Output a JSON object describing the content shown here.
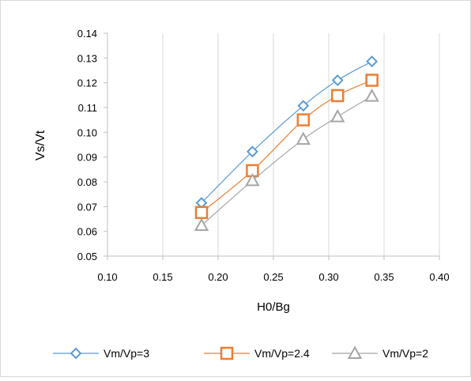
{
  "chart_data": {
    "type": "line",
    "xlabel": "H0/Bg",
    "ylabel": "Vs/Vt",
    "xlim": [
      0.1,
      0.4
    ],
    "ylim": [
      0.05,
      0.14
    ],
    "x_ticks": [
      "0.10",
      "0.15",
      "0.20",
      "0.25",
      "0.30",
      "0.35",
      "0.40"
    ],
    "y_ticks": [
      "0.05",
      "0.06",
      "0.07",
      "0.08",
      "0.09",
      "0.10",
      "0.11",
      "0.12",
      "0.13",
      "0.14"
    ],
    "grid": "vertical",
    "legend": "bottom",
    "x": [
      0.185,
      0.231,
      0.277,
      0.308,
      0.339
    ],
    "series": [
      {
        "name": "Vm/Vp=3",
        "marker": "diamond",
        "color": "#5b9bd5",
        "values": [
          0.0715,
          0.0922,
          0.1107,
          0.121,
          0.1286
        ]
      },
      {
        "name": "Vm/Vp=2.4",
        "marker": "square",
        "color": "#ed7d31",
        "values": [
          0.0676,
          0.0845,
          0.105,
          0.1148,
          0.121
        ]
      },
      {
        "name": "Vm/Vp=2",
        "marker": "triangle",
        "color": "#a5a5a5",
        "values": [
          0.0624,
          0.0805,
          0.0972,
          0.1063,
          0.1146
        ]
      }
    ]
  }
}
